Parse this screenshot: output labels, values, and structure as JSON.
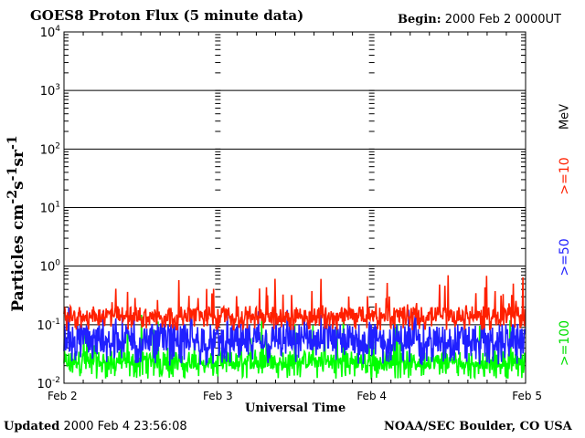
{
  "header": {
    "title": "GOES8 Proton Flux (5 minute data)",
    "begin_label": "Begin:",
    "begin_value": "2000 Feb 2 0000UT"
  },
  "footer": {
    "updated_label": "Updated",
    "updated_value": "2000 Feb  4 23:56:08",
    "credit": "NOAA/SEC Boulder, CO USA"
  },
  "side_labels": {
    "unit": "MeV",
    "ge10": ">=10",
    "ge50": ">=50",
    "ge100": ">=100"
  },
  "chart_data": {
    "type": "line",
    "title": "GOES8 Proton Flux (5 minute data)",
    "xlabel": "Universal Time",
    "ylabel": "Particles cm-2s-1sr-1",
    "yscale": "log",
    "ylim": [
      0.01,
      10000
    ],
    "y_ticks": [
      {
        "base": "10",
        "exp": "-2"
      },
      {
        "base": "10",
        "exp": "-1"
      },
      {
        "base": "10",
        "exp": "0"
      },
      {
        "base": "10",
        "exp": "1"
      },
      {
        "base": "10",
        "exp": "2"
      },
      {
        "base": "10",
        "exp": "3"
      },
      {
        "base": "10",
        "exp": "4"
      }
    ],
    "x_ticks": [
      "Feb 2",
      "Feb 3",
      "Feb 4",
      "Feb 5"
    ],
    "xlim_days": [
      0,
      3
    ],
    "grid": true,
    "series": [
      {
        "name": ">=10 MeV",
        "color": "#ff2000",
        "typical": 0.15,
        "low": 0.08,
        "peak": 0.7
      },
      {
        "name": ">=50 MeV",
        "color": "#2020ff",
        "typical": 0.06,
        "low": 0.02,
        "peak": 0.2
      },
      {
        "name": ">=100 MeV",
        "color": "#00ff00",
        "typical": 0.025,
        "low": 0.012,
        "peak": 0.15
      }
    ]
  }
}
